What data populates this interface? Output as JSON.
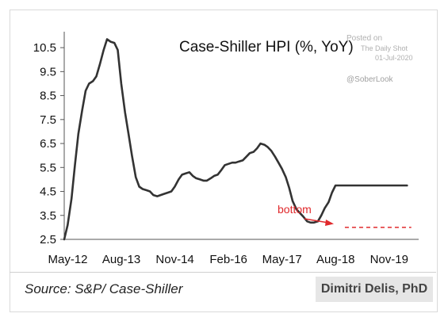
{
  "chart_data": {
    "type": "line",
    "title": "Case-Shiller HPI (%, YoY)",
    "xlabel": "",
    "ylabel": "",
    "y_ticks": [
      "10.5",
      "9.5",
      "8.5",
      "7.5",
      "6.5",
      "5.5",
      "4.5",
      "3.5",
      "2.5"
    ],
    "x_ticks": [
      "May-12",
      "Aug-13",
      "Nov-14",
      "Feb-16",
      "May-17",
      "Aug-18",
      "Nov-19"
    ],
    "ylim": [
      2.5,
      11
    ],
    "xlim": [
      2012.25,
      2020.3
    ],
    "grid": false,
    "series": [
      {
        "x": [
          2012.25,
          2012.33,
          2012.42,
          2012.5,
          2012.58,
          2012.67,
          2012.75,
          2012.83,
          2012.92,
          2013.0,
          2013.08,
          2013.17,
          2013.25,
          2013.33,
          2013.42,
          2013.5,
          2013.58,
          2013.67,
          2013.75,
          2013.83,
          2013.92,
          2014.0,
          2014.08,
          2014.17,
          2014.25,
          2014.33,
          2014.42,
          2014.5,
          2014.58,
          2014.67,
          2014.75,
          2014.83,
          2014.92,
          2015.0,
          2015.08,
          2015.17,
          2015.25,
          2015.33,
          2015.42,
          2015.5,
          2015.58,
          2015.67,
          2015.75,
          2015.83,
          2015.92,
          2016.0,
          2016.08,
          2016.17,
          2016.25,
          2016.33,
          2016.42,
          2016.5,
          2016.58,
          2016.67,
          2016.75,
          2016.83,
          2016.92,
          2017.0,
          2017.08,
          2017.17,
          2017.25,
          2017.33,
          2017.42,
          2017.5,
          2017.58,
          2017.67,
          2017.75,
          2017.83,
          2017.92,
          2018.0,
          2018.08,
          2018.17,
          2018.25,
          2018.33,
          2018.42,
          2018.5,
          2018.58,
          2018.67,
          2018.75,
          2018.83,
          2018.92,
          2019.0,
          2019.08,
          2019.17,
          2019.25,
          2019.33,
          2019.42,
          2019.5,
          2019.58,
          2019.67,
          2019.75,
          2019.83,
          2019.92,
          2020.0,
          2020.08,
          2020.17,
          2020.25
        ],
        "values": [
          2.5,
          3.1,
          4.2,
          5.6,
          6.9,
          7.9,
          8.7,
          9.0,
          9.1,
          9.3,
          9.8,
          10.4,
          10.85,
          10.75,
          10.7,
          10.4,
          9.0,
          7.8,
          6.9,
          6.0,
          5.1,
          4.7,
          4.6,
          4.55,
          4.5,
          4.35,
          4.3,
          4.35,
          4.4,
          4.45,
          4.5,
          4.7,
          5.0,
          5.2,
          5.25,
          5.3,
          5.15,
          5.05,
          5.0,
          4.95,
          4.95,
          5.05,
          5.15,
          5.2,
          5.4,
          5.6,
          5.65,
          5.7,
          5.7,
          5.75,
          5.8,
          5.95,
          6.1,
          6.15,
          6.3,
          6.5,
          6.45,
          6.35,
          6.2,
          5.95,
          5.7,
          5.45,
          5.1,
          4.65,
          4.1,
          3.75,
          3.6,
          3.45,
          3.25,
          3.2,
          3.2,
          3.25,
          3.5,
          3.8,
          4.05,
          4.45,
          4.75,
          4.75,
          4.75,
          4.75,
          4.75,
          4.75,
          4.75,
          4.75,
          4.75,
          4.75,
          4.75,
          4.75,
          4.75,
          4.75,
          4.75,
          4.75,
          4.75,
          4.75,
          4.75,
          4.75,
          4.75
        ],
        "color": "#333333"
      }
    ],
    "reference_line": {
      "y": 3.0,
      "style": "dashed",
      "color": "#e0292c"
    },
    "annotations": [
      {
        "text": "bottom",
        "color": "#e0292c"
      }
    ]
  },
  "watermark": {
    "posted_on": "Posted on",
    "daily_shot": "The Daily Shot",
    "date": "01-Jul-2020",
    "handle": "@SoberLook"
  },
  "footer": {
    "source": "Source: S&P/ Case-Shiller",
    "author": "Dimitri Delis, PhD"
  },
  "colors": {
    "line": "#333333",
    "annotation": "#e0292c",
    "badge_bg": "#e6e6e6"
  }
}
